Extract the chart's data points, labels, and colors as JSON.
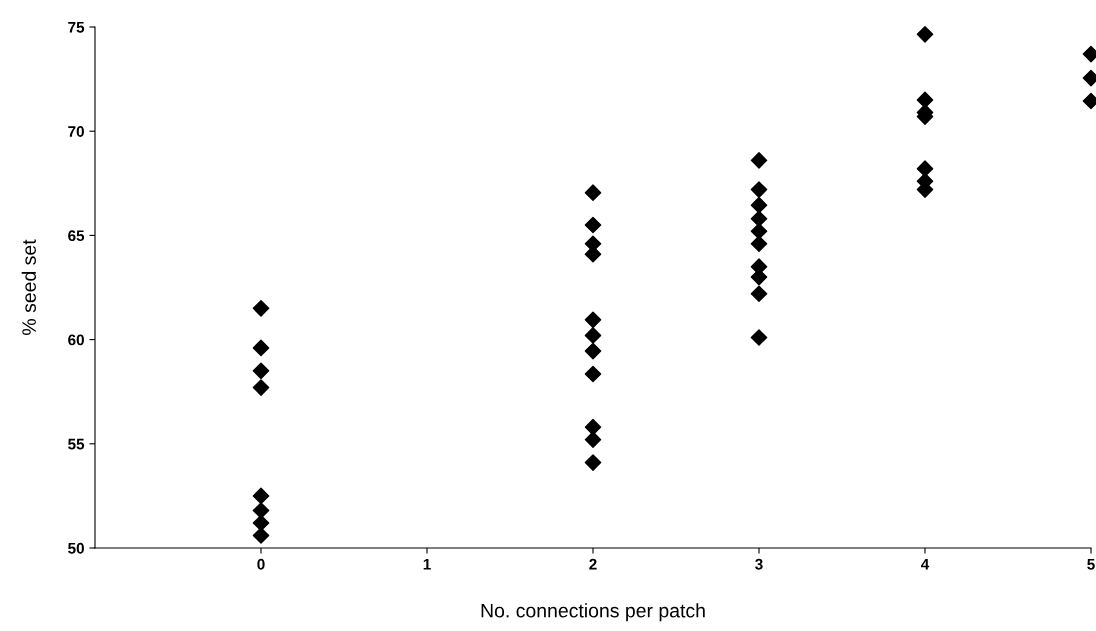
{
  "chart_data": {
    "type": "scatter",
    "xlabel": "No. connections per patch",
    "ylabel": "% seed set",
    "xlim": [
      -1,
      5
    ],
    "xticks": [
      0,
      1,
      2,
      3,
      4,
      5
    ],
    "ylim": [
      50,
      75
    ],
    "yticks": [
      50,
      55,
      60,
      65,
      70,
      75
    ],
    "marker": "diamond",
    "grid": false,
    "legend": false,
    "series": [
      {
        "color": "#000000",
        "x": [
          0,
          0,
          0,
          0,
          0,
          0,
          0,
          0,
          2,
          2,
          2,
          2,
          2,
          2,
          2,
          2,
          2,
          2,
          2,
          3,
          3,
          3,
          3,
          3,
          3,
          3,
          3,
          3,
          3,
          4,
          4,
          4,
          4,
          4,
          4,
          4,
          5,
          5,
          5
        ],
        "values": [
          61.5,
          59.6,
          58.5,
          57.7,
          52.5,
          51.8,
          51.2,
          50.6,
          67.05,
          65.5,
          64.6,
          64.1,
          60.95,
          60.2,
          59.45,
          58.35,
          55.8,
          55.2,
          54.1,
          68.6,
          67.2,
          66.45,
          65.8,
          65.2,
          64.6,
          63.5,
          63.0,
          62.2,
          60.1,
          74.65,
          71.5,
          70.9,
          70.7,
          68.2,
          67.6,
          67.2,
          73.7,
          72.55,
          71.45
        ]
      }
    ]
  }
}
